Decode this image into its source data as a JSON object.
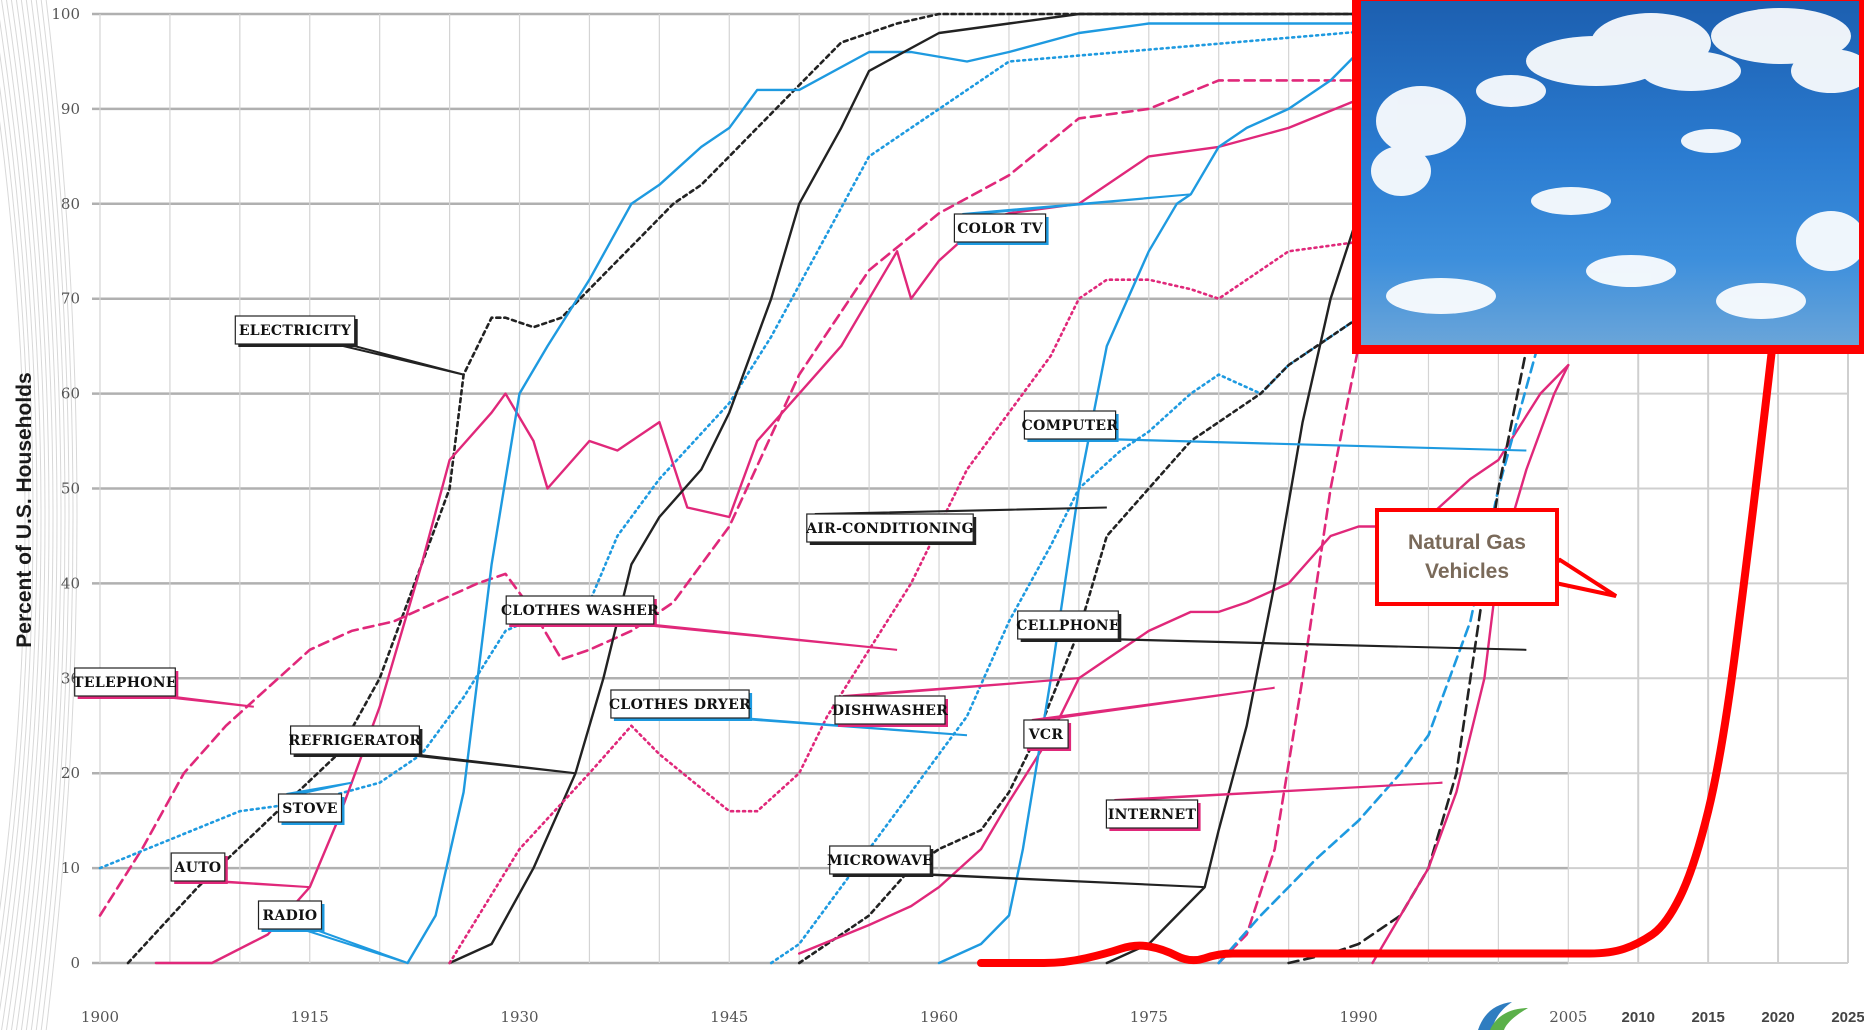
{
  "chart_data": {
    "type": "line",
    "ylabel": "Percent of U.S. Households",
    "xlabel": "",
    "xlim": [
      1900,
      2025
    ],
    "ylim": [
      0,
      100
    ],
    "x_ticks": [
      "1900",
      "1915",
      "1930",
      "1945",
      "1960",
      "1975",
      "1990",
      "2005",
      "2010",
      "2015",
      "2020",
      "2025"
    ],
    "y_ticks": [
      "0",
      "10",
      "20",
      "30",
      "40",
      "50",
      "60",
      "70",
      "80",
      "90",
      "100"
    ],
    "colors": {
      "pink": "#e0287a",
      "blue": "#1e9ae0",
      "black": "#222222",
      "red": "#ff0000",
      "label_fill": "#ffffff"
    },
    "series": [
      {
        "name": "ELECTRICITY",
        "color": "black",
        "style": "dotted-dash",
        "x": [
          1902,
          1907,
          1912,
          1917,
          1920,
          1922,
          1925,
          1926,
          1928,
          1929,
          1931,
          1933,
          1935,
          1937,
          1939,
          1941,
          1943,
          1945,
          1947,
          1949,
          1951,
          1953,
          1955,
          1957,
          1960,
          1965,
          1970,
          2005
        ],
        "y": [
          0,
          8,
          15,
          22,
          30,
          38,
          50,
          62,
          68,
          68,
          67,
          68,
          71,
          74,
          77,
          80,
          82,
          85,
          88,
          91,
          94,
          97,
          98,
          99,
          100,
          100,
          100,
          100
        ]
      },
      {
        "name": "TELEPHONE",
        "color": "pink",
        "style": "dashed",
        "x": [
          1900,
          1903,
          1906,
          1909,
          1912,
          1915,
          1918,
          1921,
          1924,
          1927,
          1929,
          1931,
          1933,
          1935,
          1938,
          1941,
          1945,
          1950,
          1955,
          1960,
          1965,
          1970,
          1975,
          1980,
          1985,
          1990,
          1995,
          2000,
          2005
        ],
        "y": [
          5,
          12,
          20,
          25,
          29,
          33,
          35,
          36,
          38,
          40,
          41,
          37,
          32,
          33,
          35,
          38,
          46,
          62,
          73,
          79,
          83,
          89,
          90,
          93,
          93,
          93,
          93,
          95,
          93
        ]
      },
      {
        "name": "STOVE",
        "color": "blue",
        "style": "dotted",
        "x": [
          1900,
          1905,
          1910,
          1915,
          1920,
          1923,
          1926,
          1929,
          1932,
          1935,
          1937,
          1940,
          1945,
          1948,
          1955,
          1965,
          2005
        ],
        "y": [
          10,
          13,
          16,
          17,
          19,
          22,
          28,
          35,
          37,
          38,
          45,
          51,
          59,
          66,
          85,
          95,
          100
        ]
      },
      {
        "name": "AUTO",
        "color": "pink",
        "style": "solid",
        "x": [
          1904,
          1908,
          1912,
          1915,
          1917,
          1920,
          1923,
          1925,
          1928,
          1929,
          1931,
          1932,
          1935,
          1937,
          1938,
          1940,
          1942,
          1945,
          1947,
          1950,
          1953,
          1955,
          1957,
          1958,
          1960,
          1963,
          1965,
          1970,
          1975,
          1980,
          1985,
          1990,
          1995,
          2000,
          2005
        ],
        "y": [
          0,
          0,
          3,
          8,
          15,
          27,
          42,
          53,
          58,
          60,
          55,
          50,
          55,
          54,
          55,
          57,
          48,
          47,
          55,
          60,
          65,
          70,
          75,
          70,
          74,
          78,
          79,
          80,
          85,
          86,
          88,
          91,
          92,
          92,
          92
        ]
      },
      {
        "name": "RADIO",
        "color": "blue",
        "style": "solid",
        "x": [
          1922,
          1924,
          1926,
          1928,
          1930,
          1932,
          1935,
          1938,
          1940,
          1943,
          1945,
          1947,
          1950,
          1955,
          1958,
          1962,
          1965,
          1970,
          1975,
          1985,
          1990,
          1995,
          2000,
          2005
        ],
        "y": [
          0,
          5,
          18,
          42,
          60,
          65,
          72,
          80,
          82,
          86,
          88,
          92,
          92,
          96,
          96,
          95,
          96,
          98,
          99,
          99,
          99,
          99,
          99,
          99
        ]
      },
      {
        "name": "REFRIGERATOR",
        "color": "black",
        "style": "solid",
        "x": [
          1925,
          1928,
          1931,
          1934,
          1936,
          1938,
          1940,
          1943,
          1945,
          1948,
          1950,
          1953,
          1955,
          1960,
          1965,
          1970,
          2005
        ],
        "y": [
          0,
          2,
          10,
          20,
          30,
          42,
          47,
          52,
          58,
          70,
          80,
          88,
          94,
          98,
          99,
          100,
          100
        ]
      },
      {
        "name": "CLOTHES WASHER",
        "color": "pink",
        "style": "dotted",
        "x": [
          1925,
          1930,
          1935,
          1938,
          1940,
          1945,
          1947,
          1950,
          1952,
          1955,
          1958,
          1960,
          1962,
          1965,
          1968,
          1970,
          1972,
          1975,
          1978,
          1980,
          1982,
          1985,
          1990,
          1995,
          2000,
          2005
        ],
        "y": [
          0,
          12,
          20,
          25,
          22,
          16,
          16,
          20,
          26,
          33,
          40,
          46,
          52,
          58,
          64,
          70,
          72,
          72,
          71,
          70,
          72,
          75,
          76,
          77,
          79,
          82
        ]
      },
      {
        "name": "CLOTHES DRYER",
        "color": "blue",
        "style": "dotted",
        "x": [
          1948,
          1950,
          1953,
          1955,
          1958,
          1960,
          1962,
          1965,
          1968,
          1970,
          1973,
          1975,
          1978,
          1980,
          1983,
          1985,
          1988,
          1990,
          1993,
          1995,
          1998,
          2000,
          2003,
          2005
        ],
        "y": [
          0,
          2,
          8,
          12,
          18,
          22,
          26,
          36,
          44,
          50,
          54,
          56,
          60,
          62,
          60,
          63,
          66,
          68,
          70,
          71,
          72,
          74,
          77,
          80
        ]
      },
      {
        "name": "AIR-CONDITIONING",
        "color": "black",
        "style": "dotted-dash",
        "x": [
          1950,
          1955,
          1958,
          1960,
          1963,
          1965,
          1967,
          1970,
          1972,
          1975,
          1978,
          1980,
          1983,
          1985,
          1988,
          1990,
          1993,
          1995,
          1998,
          2000,
          2003,
          2005
        ],
        "y": [
          0,
          5,
          10,
          12,
          14,
          18,
          24,
          35,
          45,
          50,
          55,
          57,
          60,
          63,
          66,
          68,
          70,
          72,
          74,
          76,
          80,
          87
        ]
      },
      {
        "name": "DISHWASHER",
        "color": "pink",
        "style": "solid",
        "x": [
          1950,
          1955,
          1958,
          1960,
          1963,
          1965,
          1968,
          1970,
          1972,
          1975,
          1978,
          1980,
          1982,
          1985,
          1988,
          1990,
          1993,
          1995,
          1998,
          2000,
          2003,
          2005
        ],
        "y": [
          1,
          4,
          6,
          8,
          12,
          17,
          24,
          30,
          32,
          35,
          37,
          37,
          38,
          40,
          45,
          46,
          46,
          47,
          51,
          53,
          60,
          63
        ]
      },
      {
        "name": "COLOR TV",
        "color": "blue",
        "style": "solid",
        "x": [
          1960,
          1963,
          1965,
          1966,
          1968,
          1970,
          1972,
          1975,
          1977,
          1978,
          1980,
          1982,
          1985,
          1988,
          1990,
          1993,
          1995,
          1998,
          2000,
          2003,
          2005
        ],
        "y": [
          0,
          2,
          5,
          12,
          30,
          50,
          65,
          75,
          80,
          81,
          86,
          88,
          90,
          93,
          96,
          95,
          96,
          96,
          95,
          97,
          97
        ]
      },
      {
        "name": "MICROWAVE",
        "color": "black",
        "style": "solid",
        "x": [
          1972,
          1975,
          1977,
          1979,
          1980,
          1982,
          1984,
          1986,
          1988,
          1990,
          1993,
          1995,
          1998,
          2000,
          2003,
          2005
        ],
        "y": [
          0,
          2,
          5,
          8,
          14,
          25,
          40,
          57,
          70,
          79,
          84,
          84,
          83,
          85,
          87,
          90
        ]
      },
      {
        "name": "VCR",
        "color": "pink",
        "style": "dashed",
        "x": [
          1980,
          1982,
          1984,
          1986,
          1988,
          1990,
          1993,
          1995,
          1998,
          2000,
          2003,
          2005
        ],
        "y": [
          0,
          3,
          12,
          30,
          50,
          65,
          75,
          79,
          82,
          81,
          88,
          90
        ]
      },
      {
        "name": "COMPUTER",
        "color": "blue",
        "style": "dashed",
        "x": [
          1980,
          1983,
          1985,
          1987,
          1990,
          1993,
          1995,
          1998,
          2000,
          2003,
          2005
        ],
        "y": [
          0,
          5,
          8,
          11,
          15,
          20,
          24,
          36,
          50,
          66,
          73
        ]
      },
      {
        "name": "CELLPHONE",
        "color": "black",
        "style": "dashed",
        "x": [
          1985,
          1988,
          1990,
          1993,
          1995,
          1997,
          2000,
          2003,
          2005
        ],
        "y": [
          0,
          1,
          2,
          5,
          10,
          20,
          50,
          72,
          88
        ]
      },
      {
        "name": "INTERNET",
        "color": "pink",
        "style": "solid",
        "x": [
          1991,
          1993,
          1995,
          1997,
          1999,
          2000,
          2002,
          2004,
          2005
        ],
        "y": [
          0,
          5,
          10,
          18,
          30,
          42,
          52,
          60,
          63
        ]
      }
    ],
    "overlay_series": {
      "name": "Natural Gas Vehicles",
      "color": "red",
      "x": [
        1963,
        1966,
        1969,
        1972,
        1974,
        1976,
        1978,
        1980,
        1982,
        1985,
        1988,
        1991,
        1995,
        2000,
        2005,
        2008,
        2010,
        2012,
        2014,
        2016,
        2018,
        2020,
        2022,
        2023
      ],
      "y": [
        0,
        0,
        0,
        1,
        2,
        1.5,
        0,
        1,
        1,
        1,
        1,
        1,
        1,
        1,
        1,
        1,
        2,
        4,
        10,
        22,
        45,
        70,
        98,
        125
      ]
    }
  }
}
